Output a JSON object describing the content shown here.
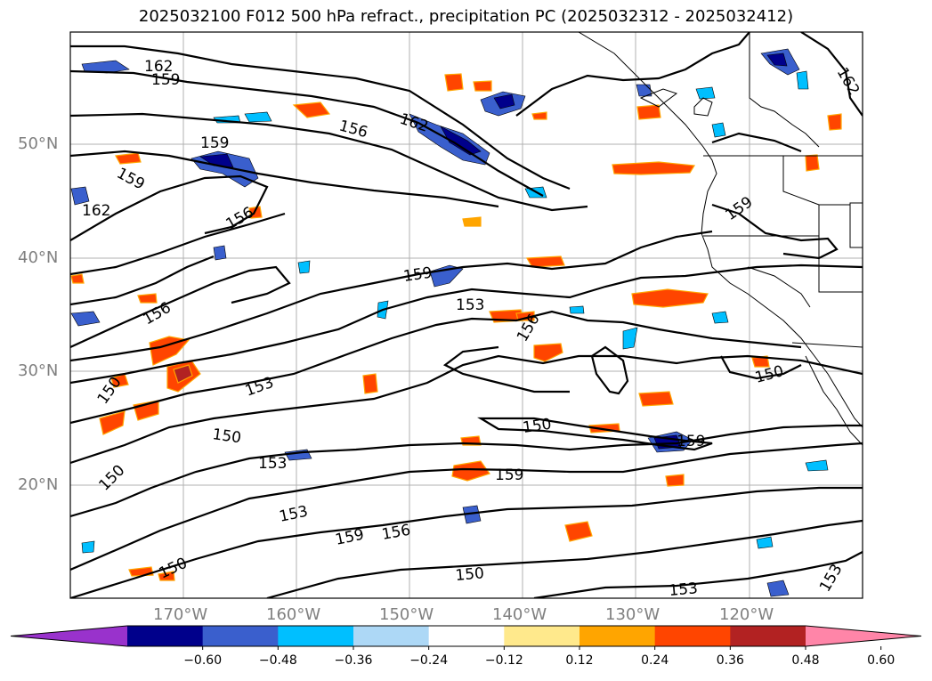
{
  "title": "2025032100 F012 500 hPa refract., precipitation PC (2025032312 - 2025032412)",
  "lat_labels": [
    "50°N",
    "40°N",
    "30°N",
    "20°N"
  ],
  "lon_labels": [
    "170°W",
    "160°W",
    "150°W",
    "140°W",
    "130°W",
    "120°W"
  ],
  "contour_labels": {
    "c162a": "162",
    "c159a": "159",
    "c162b": "162",
    "c156a": "156",
    "c159b": "159",
    "c159c": "159",
    "c162c": "162",
    "c156b": "156",
    "c159d": "159",
    "c156c": "156",
    "c159e": "159",
    "c153a": "153",
    "c156d": "156",
    "c150a": "150",
    "c153b": "153",
    "c150b": "150",
    "c150c": "150",
    "c150d": "150",
    "c153c": "153",
    "c150e": "150",
    "c159f": "159",
    "c153d": "153",
    "c159g": "159",
    "c156e": "156",
    "c150f": "150",
    "c153e": "153",
    "c153f": "153",
    "c150g": "150",
    "c162d": "162",
    "c159h": "159"
  },
  "colorbar": {
    "ticks": [
      "−0.60",
      "−0.48",
      "−0.36",
      "−0.24",
      "−0.12",
      "0.12",
      "0.24",
      "0.36",
      "0.48",
      "0.60"
    ],
    "colors": [
      "#9932cc",
      "#00008b",
      "#3a5fcd",
      "#00bfff",
      "#add8f6",
      "#ffffff",
      "#ffe98c",
      "#ffa500",
      "#ff4500",
      "#b22222",
      "#ff85a8"
    ]
  }
}
